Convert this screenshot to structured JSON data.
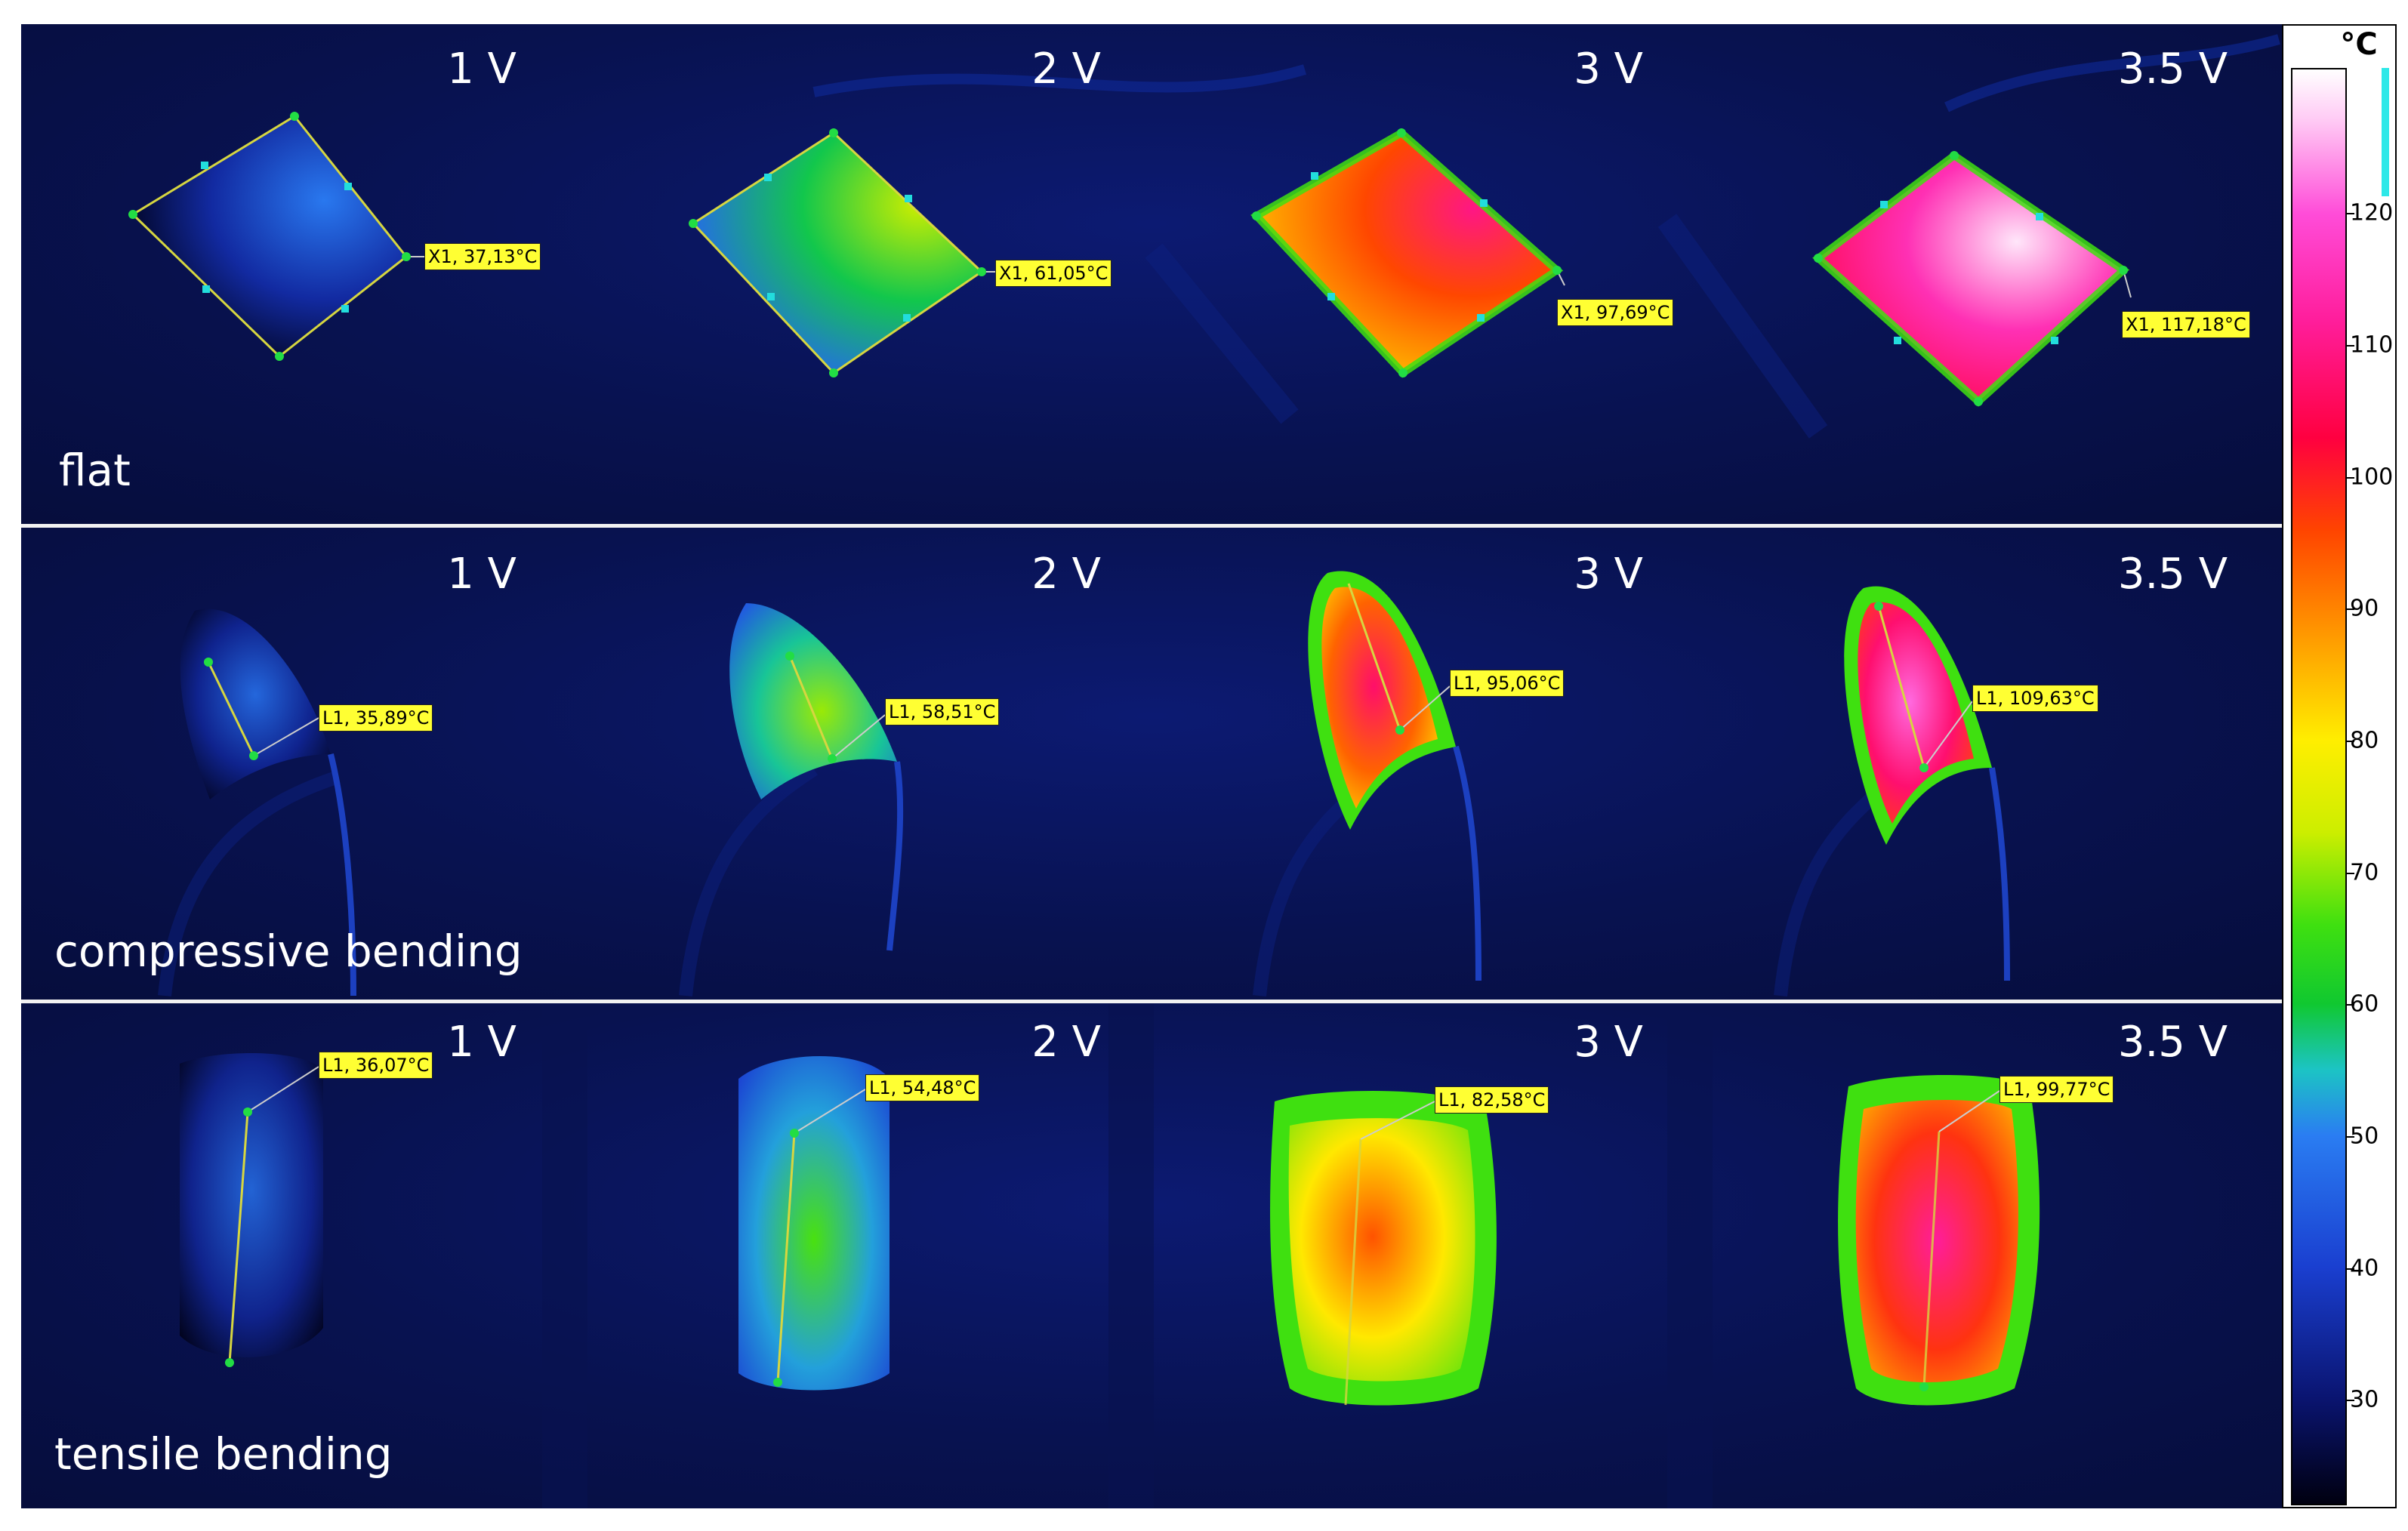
{
  "colorbar": {
    "unit": "°C",
    "ticks": [
      30,
      40,
      50,
      60,
      70,
      80,
      90,
      100,
      110,
      120
    ],
    "range": [
      22,
      131
    ],
    "stops": [
      {
        "value": 22,
        "color": "#000010"
      },
      {
        "value": 30,
        "color": "#0a1470"
      },
      {
        "value": 40,
        "color": "#1a3fd0"
      },
      {
        "value": 50,
        "color": "#2a7df2"
      },
      {
        "value": 55,
        "color": "#1cc4c4"
      },
      {
        "value": 60,
        "color": "#10c830"
      },
      {
        "value": 66,
        "color": "#3fe010"
      },
      {
        "value": 73,
        "color": "#ccee00"
      },
      {
        "value": 80,
        "color": "#ffee00"
      },
      {
        "value": 88,
        "color": "#ff9900"
      },
      {
        "value": 96,
        "color": "#ff4400"
      },
      {
        "value": 103,
        "color": "#ff0040"
      },
      {
        "value": 112,
        "color": "#ff1e9c"
      },
      {
        "value": 120,
        "color": "#ff4cd8"
      },
      {
        "value": 127,
        "color": "#ffc8f4"
      },
      {
        "value": 131,
        "color": "#ffffff"
      }
    ]
  },
  "rows": [
    {
      "condition": "flat",
      "panels": [
        {
          "voltage": "1 V",
          "readout": "X1, 37,13°C",
          "temperature": 37.13
        },
        {
          "voltage": "2 V",
          "readout": "X1, 61,05°C",
          "temperature": 61.05
        },
        {
          "voltage": "3 V",
          "readout": "X1, 97,69°C",
          "temperature": 97.69
        },
        {
          "voltage": "3.5 V",
          "readout": "X1, 117,18°C",
          "temperature": 117.18
        }
      ]
    },
    {
      "condition": "compressive bending",
      "panels": [
        {
          "voltage": "1 V",
          "readout": "L1, 35,89°C",
          "temperature": 35.89
        },
        {
          "voltage": "2 V",
          "readout": "L1, 58,51°C",
          "temperature": 58.51
        },
        {
          "voltage": "3 V",
          "readout": "L1, 95,06°C",
          "temperature": 95.06
        },
        {
          "voltage": "3.5 V",
          "readout": "L1, 109,63°C",
          "temperature": 109.63
        }
      ]
    },
    {
      "condition": "tensile bending",
      "panels": [
        {
          "voltage": "1 V",
          "readout": "L1, 36,07°C",
          "temperature": 36.07
        },
        {
          "voltage": "2 V",
          "readout": "L1, 54,48°C",
          "temperature": 54.48
        },
        {
          "voltage": "3 V",
          "readout": "L1, 82,58°C",
          "temperature": 82.58
        },
        {
          "voltage": "3.5 V",
          "readout": "L1, 99,77°C",
          "temperature": 99.77
        }
      ]
    }
  ]
}
